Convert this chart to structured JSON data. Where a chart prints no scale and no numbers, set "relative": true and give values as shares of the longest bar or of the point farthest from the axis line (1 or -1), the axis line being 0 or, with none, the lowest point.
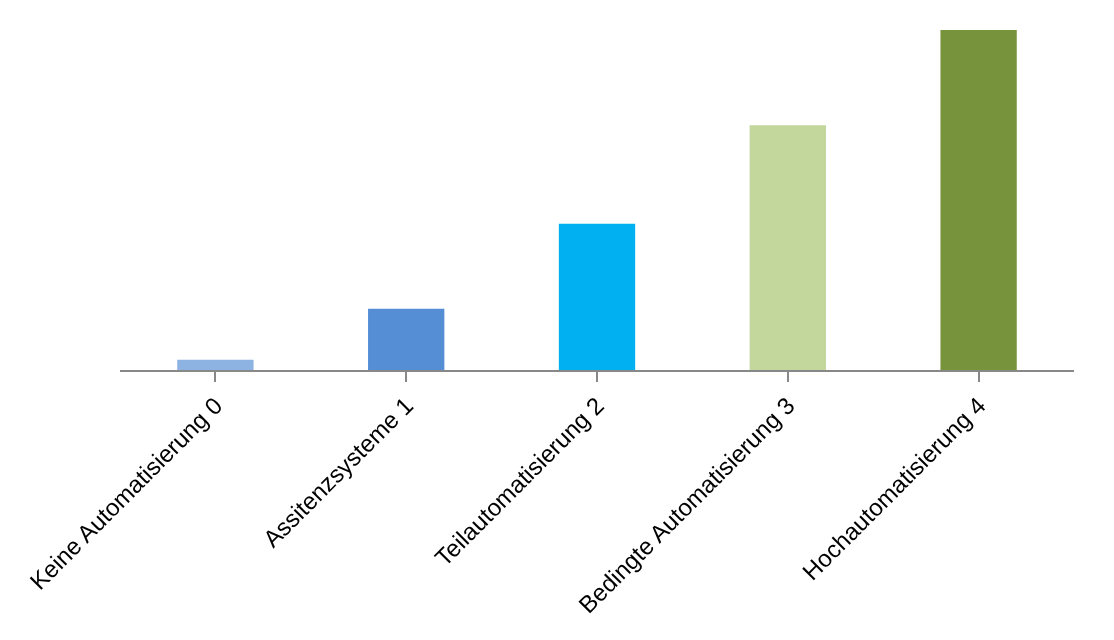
{
  "chart_data": {
    "type": "bar",
    "relative": true,
    "categories": [
      "Keine Automatisierung 0",
      "Assitenzsysteme 1",
      "Teilautomatisierung 2",
      "Bedingte Automatisierung 3",
      "Hochautomatisierung 4"
    ],
    "values": [
      0.03,
      0.18,
      0.43,
      0.72,
      1
    ],
    "colors": [
      "#8db3e2",
      "#558ed5",
      "#00b0f0",
      "#c3d69b",
      "#77933c"
    ],
    "legend": false
  }
}
